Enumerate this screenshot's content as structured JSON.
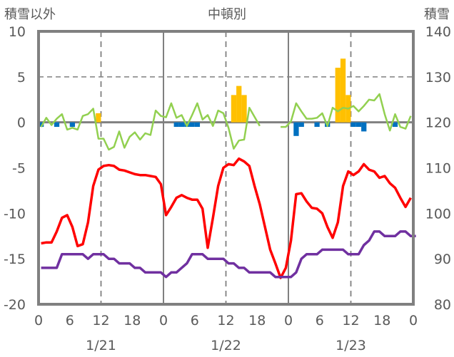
{
  "chart_data": {
    "type": "line",
    "title": "中頓別",
    "ylabel_left": "積雪以外",
    "ylabel_right": "積雪",
    "ylim_left": [
      -20,
      10
    ],
    "ylim_right": [
      80,
      140
    ],
    "yticks_left": [
      "10",
      "5",
      "0",
      "-5",
      "-10",
      "-15",
      "-20"
    ],
    "yticks_right": [
      "140",
      "130",
      "120",
      "110",
      "100",
      "90",
      "80"
    ],
    "xticks": [
      "0",
      "6",
      "12",
      "18",
      "0",
      "6",
      "12",
      "18",
      "0",
      "6",
      "12",
      "18",
      "0"
    ],
    "days": [
      "1/21",
      "1/22",
      "1/23"
    ],
    "hours_total": 72,
    "grid": "dashed at 12h and y=5, solid at day boundaries and y=0",
    "colors": {
      "red": "#ff0000",
      "purple": "#7030a0",
      "green": "#92d050",
      "orange": "#ffc000",
      "blue": "#0070c0",
      "axis": "#808080"
    },
    "series": [
      {
        "name": "red",
        "color": "#ff0000",
        "values": [
          -13.3,
          -13.2,
          -13.2,
          -12,
          -10.5,
          -10.2,
          -11.5,
          -13.6,
          -13.4,
          -11,
          -7,
          -5.2,
          -4.8,
          -4.7,
          -4.8,
          -5.2,
          -5.3,
          -5.5,
          -5.7,
          -5.8,
          -5.8,
          -5.9,
          -6,
          -6.8,
          -10.2,
          -9.3,
          -8.3,
          -8,
          -8.3,
          -8.5,
          -8.5,
          -9.5,
          -13.8,
          -10.5,
          -7,
          -5,
          -4.6,
          -4.7,
          -4,
          -4.3,
          -4.8,
          -7,
          -9,
          -11.5,
          -14,
          -15.5,
          -17.1,
          -16,
          -13,
          -7.9,
          -7.8,
          -8.7,
          -9.4,
          -9.5,
          -10,
          -11.5,
          -12.7,
          -11,
          -7,
          -5.4,
          -5.8,
          -5.4,
          -4.6,
          -5.2,
          -5.4,
          -6.1,
          -5.9,
          -6.7,
          -7.2,
          -8.3,
          -9.3,
          -8.3
        ]
      },
      {
        "name": "purple",
        "color": "#7030a0",
        "values": [
          -16,
          -16,
          -16,
          -16,
          -14.5,
          -14.5,
          -14.5,
          -14.5,
          -14.5,
          -15,
          -14.5,
          -14.5,
          -14.5,
          -15,
          -15,
          -15.5,
          -15.5,
          -15.5,
          -16,
          -16,
          -16.5,
          -16.5,
          -16.5,
          -16.5,
          -17,
          -16.5,
          -16.5,
          -16,
          -15.5,
          -14.5,
          -14.5,
          -14.5,
          -15,
          -15,
          -15,
          -15,
          -15.5,
          -15.5,
          -16,
          -16,
          -16.5,
          -16.5,
          -16.5,
          -16.5,
          -16.5,
          -17,
          -17,
          -17,
          -17,
          -16.5,
          -15,
          -14.5,
          -14.5,
          -14.5,
          -14,
          -14,
          -14,
          -14,
          -14,
          -14.5,
          -14.5,
          -14.5,
          -13.5,
          -13,
          -12,
          -12,
          -12.5,
          -12.5,
          -12.5,
          -12,
          -12,
          -12.5,
          -12.5
        ]
      },
      {
        "name": "green",
        "color": "#92d050",
        "values": [
          -0.5,
          0.5,
          -0.3,
          0.4,
          0.9,
          -0.8,
          -0.6,
          -0.8,
          0.7,
          0.9,
          1.5,
          -1.8,
          -1.8,
          -3,
          -2.7,
          -1,
          -2.8,
          -1.6,
          -1.1,
          -1.9,
          -1.2,
          -1.4,
          1.3,
          0.7,
          0.55,
          2.1,
          0.5,
          0.8,
          -0.4,
          0.8,
          2.1,
          0.3,
          0.8,
          -0.4,
          1.3,
          1,
          -0.6,
          -2.9,
          -2,
          -1.9,
          1.6,
          0.6,
          -0.4,
          null,
          null,
          null,
          -0.5,
          -0.5,
          0.1,
          2.1,
          1.2,
          0.4,
          0.4,
          0.5,
          1,
          -0.4,
          1.6,
          1.2,
          1.6,
          1.5,
          1.8,
          1.2,
          1.8,
          2.5,
          2.4,
          3.1,
          0.9,
          -0.9,
          0.9,
          -0.5,
          -0.7,
          0.7
        ]
      },
      {
        "name": "bars",
        "type": "bar",
        "values": [
          -0.5,
          0,
          0,
          -0.5,
          0,
          0,
          -0.5,
          0,
          0,
          0,
          0,
          1,
          0,
          0,
          0,
          0,
          0,
          0,
          0,
          0,
          0,
          0,
          0,
          0,
          0,
          0,
          -0.5,
          -0.5,
          -0.5,
          -0.5,
          -0.5,
          0,
          0,
          0,
          0,
          0,
          0,
          3,
          4,
          3,
          0,
          0,
          0,
          0,
          0,
          0,
          0,
          0,
          0,
          -1.5,
          -0.5,
          0,
          0,
          -0.5,
          0,
          -0.5,
          0,
          6,
          7,
          3,
          -0.5,
          -0.5,
          -1,
          0,
          0,
          0,
          0,
          0,
          -0.5,
          0,
          0,
          0
        ]
      }
    ]
  }
}
